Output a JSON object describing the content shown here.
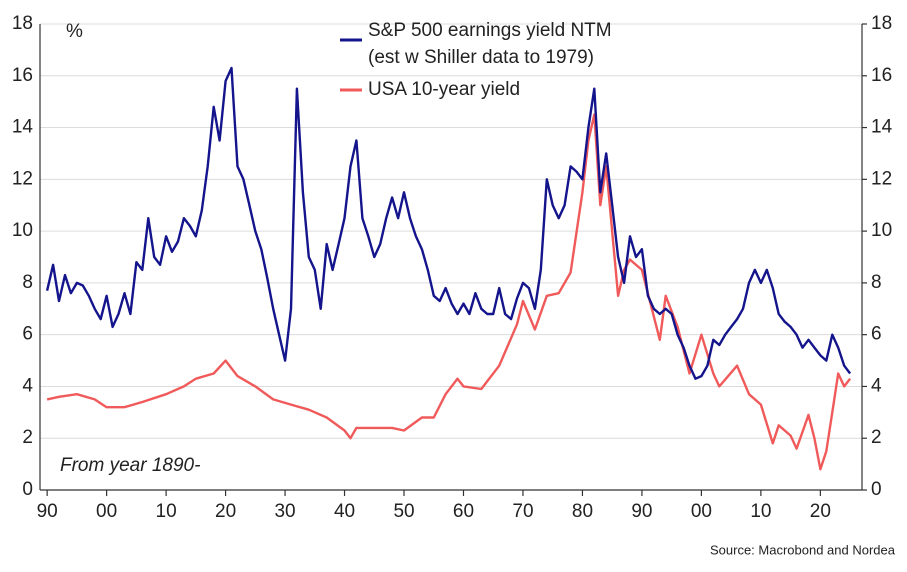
{
  "chart_data": {
    "type": "line",
    "unit_label": "%",
    "annotation": "From year 1890-",
    "source": "Source: Macrobond and Nordea",
    "xlim": [
      1888.8,
      2027
    ],
    "xticks": [
      {
        "value": 1890,
        "label": "90"
      },
      {
        "value": 1900,
        "label": "00"
      },
      {
        "value": 1910,
        "label": "10"
      },
      {
        "value": 1920,
        "label": "20"
      },
      {
        "value": 1930,
        "label": "30"
      },
      {
        "value": 1940,
        "label": "40"
      },
      {
        "value": 1950,
        "label": "50"
      },
      {
        "value": 1960,
        "label": "60"
      },
      {
        "value": 1970,
        "label": "70"
      },
      {
        "value": 1980,
        "label": "80"
      },
      {
        "value": 1990,
        "label": "90"
      },
      {
        "value": 2000,
        "label": "00"
      },
      {
        "value": 2010,
        "label": "10"
      },
      {
        "value": 2020,
        "label": "20"
      }
    ],
    "ylim": [
      0,
      18
    ],
    "yticks": [
      0,
      2,
      4,
      6,
      8,
      10,
      12,
      14,
      16,
      18
    ],
    "y2lim": [
      0,
      18
    ],
    "y2ticks": [
      0,
      2,
      4,
      6,
      8,
      10,
      12,
      14,
      16,
      18
    ],
    "grid": true,
    "series": [
      {
        "name": "S&P 500 earnings yield NTM",
        "name_note": "(est w Shiller data to 1979)",
        "color": "#14148c",
        "x": [
          1890,
          1891,
          1892,
          1893,
          1894,
          1895,
          1896,
          1897,
          1898,
          1899,
          1900,
          1901,
          1902,
          1903,
          1904,
          1905,
          1906,
          1907,
          1908,
          1909,
          1910,
          1911,
          1912,
          1913,
          1914,
          1915,
          1916,
          1917,
          1918,
          1919,
          1920,
          1921,
          1922,
          1923,
          1924,
          1925,
          1926,
          1927,
          1928,
          1929,
          1930,
          1931,
          1932,
          1933,
          1934,
          1935,
          1936,
          1937,
          1938,
          1939,
          1940,
          1941,
          1942,
          1943,
          1944,
          1945,
          1946,
          1947,
          1948,
          1949,
          1950,
          1951,
          1952,
          1953,
          1954,
          1955,
          1956,
          1957,
          1958,
          1959,
          1960,
          1961,
          1962,
          1963,
          1964,
          1965,
          1966,
          1967,
          1968,
          1969,
          1970,
          1971,
          1972,
          1973,
          1974,
          1975,
          1976,
          1977,
          1978,
          1979,
          1980,
          1981,
          1982,
          1983,
          1984,
          1985,
          1986,
          1987,
          1988,
          1989,
          1990,
          1991,
          1992,
          1993,
          1994,
          1995,
          1996,
          1997,
          1998,
          1999,
          2000,
          2001,
          2002,
          2003,
          2004,
          2005,
          2006,
          2007,
          2008,
          2009,
          2010,
          2011,
          2012,
          2013,
          2014,
          2015,
          2016,
          2017,
          2018,
          2019,
          2020,
          2021,
          2022,
          2023,
          2024,
          2025
        ],
        "values": [
          7.7,
          8.7,
          7.3,
          8.3,
          7.6,
          8.0,
          7.9,
          7.5,
          7.0,
          6.6,
          7.5,
          6.3,
          6.8,
          7.6,
          6.8,
          8.8,
          8.5,
          10.5,
          9.0,
          8.7,
          9.8,
          9.2,
          9.6,
          10.5,
          10.2,
          9.8,
          10.8,
          12.5,
          14.8,
          13.5,
          15.8,
          16.3,
          12.5,
          12.0,
          11.0,
          10.0,
          9.3,
          8.2,
          7.0,
          6.0,
          5.0,
          7.0,
          15.5,
          11.5,
          9.0,
          8.5,
          7.0,
          9.5,
          8.5,
          9.5,
          10.5,
          12.5,
          13.5,
          10.5,
          9.8,
          9.0,
          9.5,
          10.5,
          11.3,
          10.5,
          11.5,
          10.5,
          9.8,
          9.3,
          8.5,
          7.5,
          7.3,
          7.8,
          7.2,
          6.8,
          7.2,
          6.8,
          7.6,
          7.0,
          6.8,
          6.8,
          7.8,
          6.8,
          6.6,
          7.4,
          8.0,
          7.8,
          7.0,
          8.5,
          12.0,
          11.0,
          10.5,
          11.0,
          12.5,
          12.3,
          12.0,
          14.0,
          15.5,
          11.5,
          13.0,
          11.0,
          9.0,
          8.0,
          9.8,
          9.0,
          9.3,
          7.5,
          7.0,
          6.8,
          7.0,
          6.8,
          6.0,
          5.5,
          4.8,
          4.3,
          4.4,
          4.8,
          5.8,
          5.6,
          6.0,
          6.3,
          6.6,
          7.0,
          8.0,
          8.5,
          8.0,
          8.5,
          7.8,
          6.8,
          6.5,
          6.3,
          6.0,
          5.5,
          5.8,
          5.5,
          5.2,
          5.0,
          6.0,
          5.5,
          4.8,
          4.5
        ]
      },
      {
        "name": "USA 10-year yield",
        "color": "#f05a5a",
        "x": [
          1890,
          1892,
          1895,
          1898,
          1900,
          1903,
          1906,
          1910,
          1913,
          1915,
          1918,
          1920,
          1922,
          1925,
          1928,
          1931,
          1934,
          1937,
          1940,
          1941,
          1942,
          1945,
          1948,
          1950,
          1953,
          1955,
          1957,
          1959,
          1960,
          1963,
          1966,
          1969,
          1970,
          1972,
          1974,
          1976,
          1978,
          1980,
          1981,
          1982,
          1983,
          1984,
          1986,
          1987,
          1988,
          1990,
          1993,
          1994,
          1996,
          1998,
          2000,
          2002,
          2003,
          2006,
          2008,
          2010,
          2012,
          2013,
          2015,
          2016,
          2018,
          2019,
          2020,
          2021,
          2022,
          2023,
          2024,
          2025
        ],
        "values": [
          3.5,
          3.6,
          3.7,
          3.5,
          3.2,
          3.2,
          3.4,
          3.7,
          4.0,
          4.3,
          4.5,
          5.0,
          4.4,
          4.0,
          3.5,
          3.3,
          3.1,
          2.8,
          2.3,
          2.0,
          2.4,
          2.4,
          2.4,
          2.3,
          2.8,
          2.8,
          3.7,
          4.3,
          4.0,
          3.9,
          4.8,
          6.4,
          7.3,
          6.2,
          7.5,
          7.6,
          8.4,
          11.5,
          13.5,
          14.5,
          11.0,
          12.5,
          7.5,
          8.5,
          8.9,
          8.5,
          5.8,
          7.5,
          6.3,
          4.5,
          6.0,
          4.5,
          4.0,
          4.8,
          3.7,
          3.3,
          1.8,
          2.5,
          2.1,
          1.6,
          2.9,
          2.0,
          0.8,
          1.5,
          3.0,
          4.5,
          4.0,
          4.3
        ]
      }
    ]
  }
}
